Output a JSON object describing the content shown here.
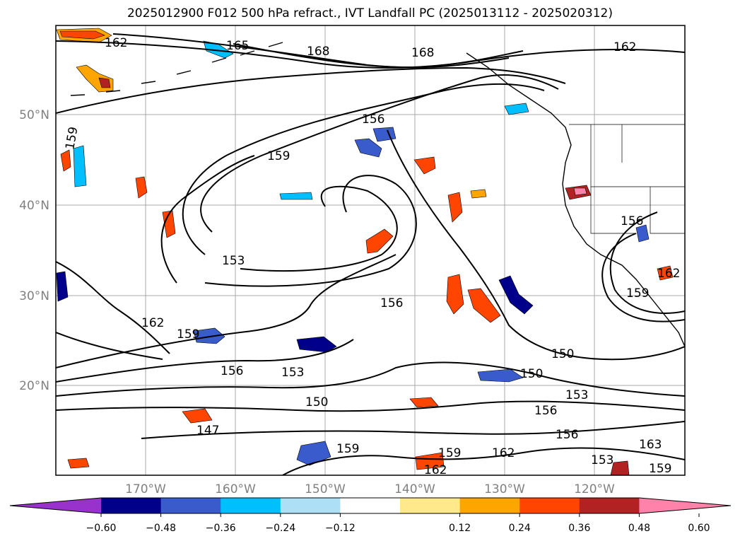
{
  "title": "2025012900 F012 500 hPa refract., IVT Landfall PC (2025013112 - 2025020312)",
  "map": {
    "lon_labels": [
      "170°W",
      "160°W",
      "150°W",
      "140°W",
      "130°W",
      "120°W"
    ],
    "lat_labels": [
      "50°N",
      "40°N",
      "30°N",
      "20°N"
    ],
    "contour_labels": [
      "162",
      "165",
      "168",
      "168",
      "162",
      "159",
      "156",
      "159",
      "153",
      "156",
      "162",
      "159",
      "156",
      "153",
      "150",
      "147",
      "150",
      "150",
      "153",
      "156",
      "156",
      "159",
      "162",
      "162",
      "159",
      "162",
      "156",
      "159",
      "153",
      "163",
      "159"
    ]
  },
  "colorbar": {
    "tick_labels": [
      "−0.60",
      "−0.48",
      "−0.36",
      "−0.24",
      "−0.12",
      "0.12",
      "0.24",
      "0.36",
      "0.48",
      "0.60"
    ],
    "colors": [
      "#9932CC",
      "#00008B",
      "#3A5BCB",
      "#00BFFF",
      "#ADE0F7",
      "#FFFFFF",
      "#FFE98A",
      "#FFA500",
      "#FF4500",
      "#B22222",
      "#FF82AB"
    ]
  }
}
